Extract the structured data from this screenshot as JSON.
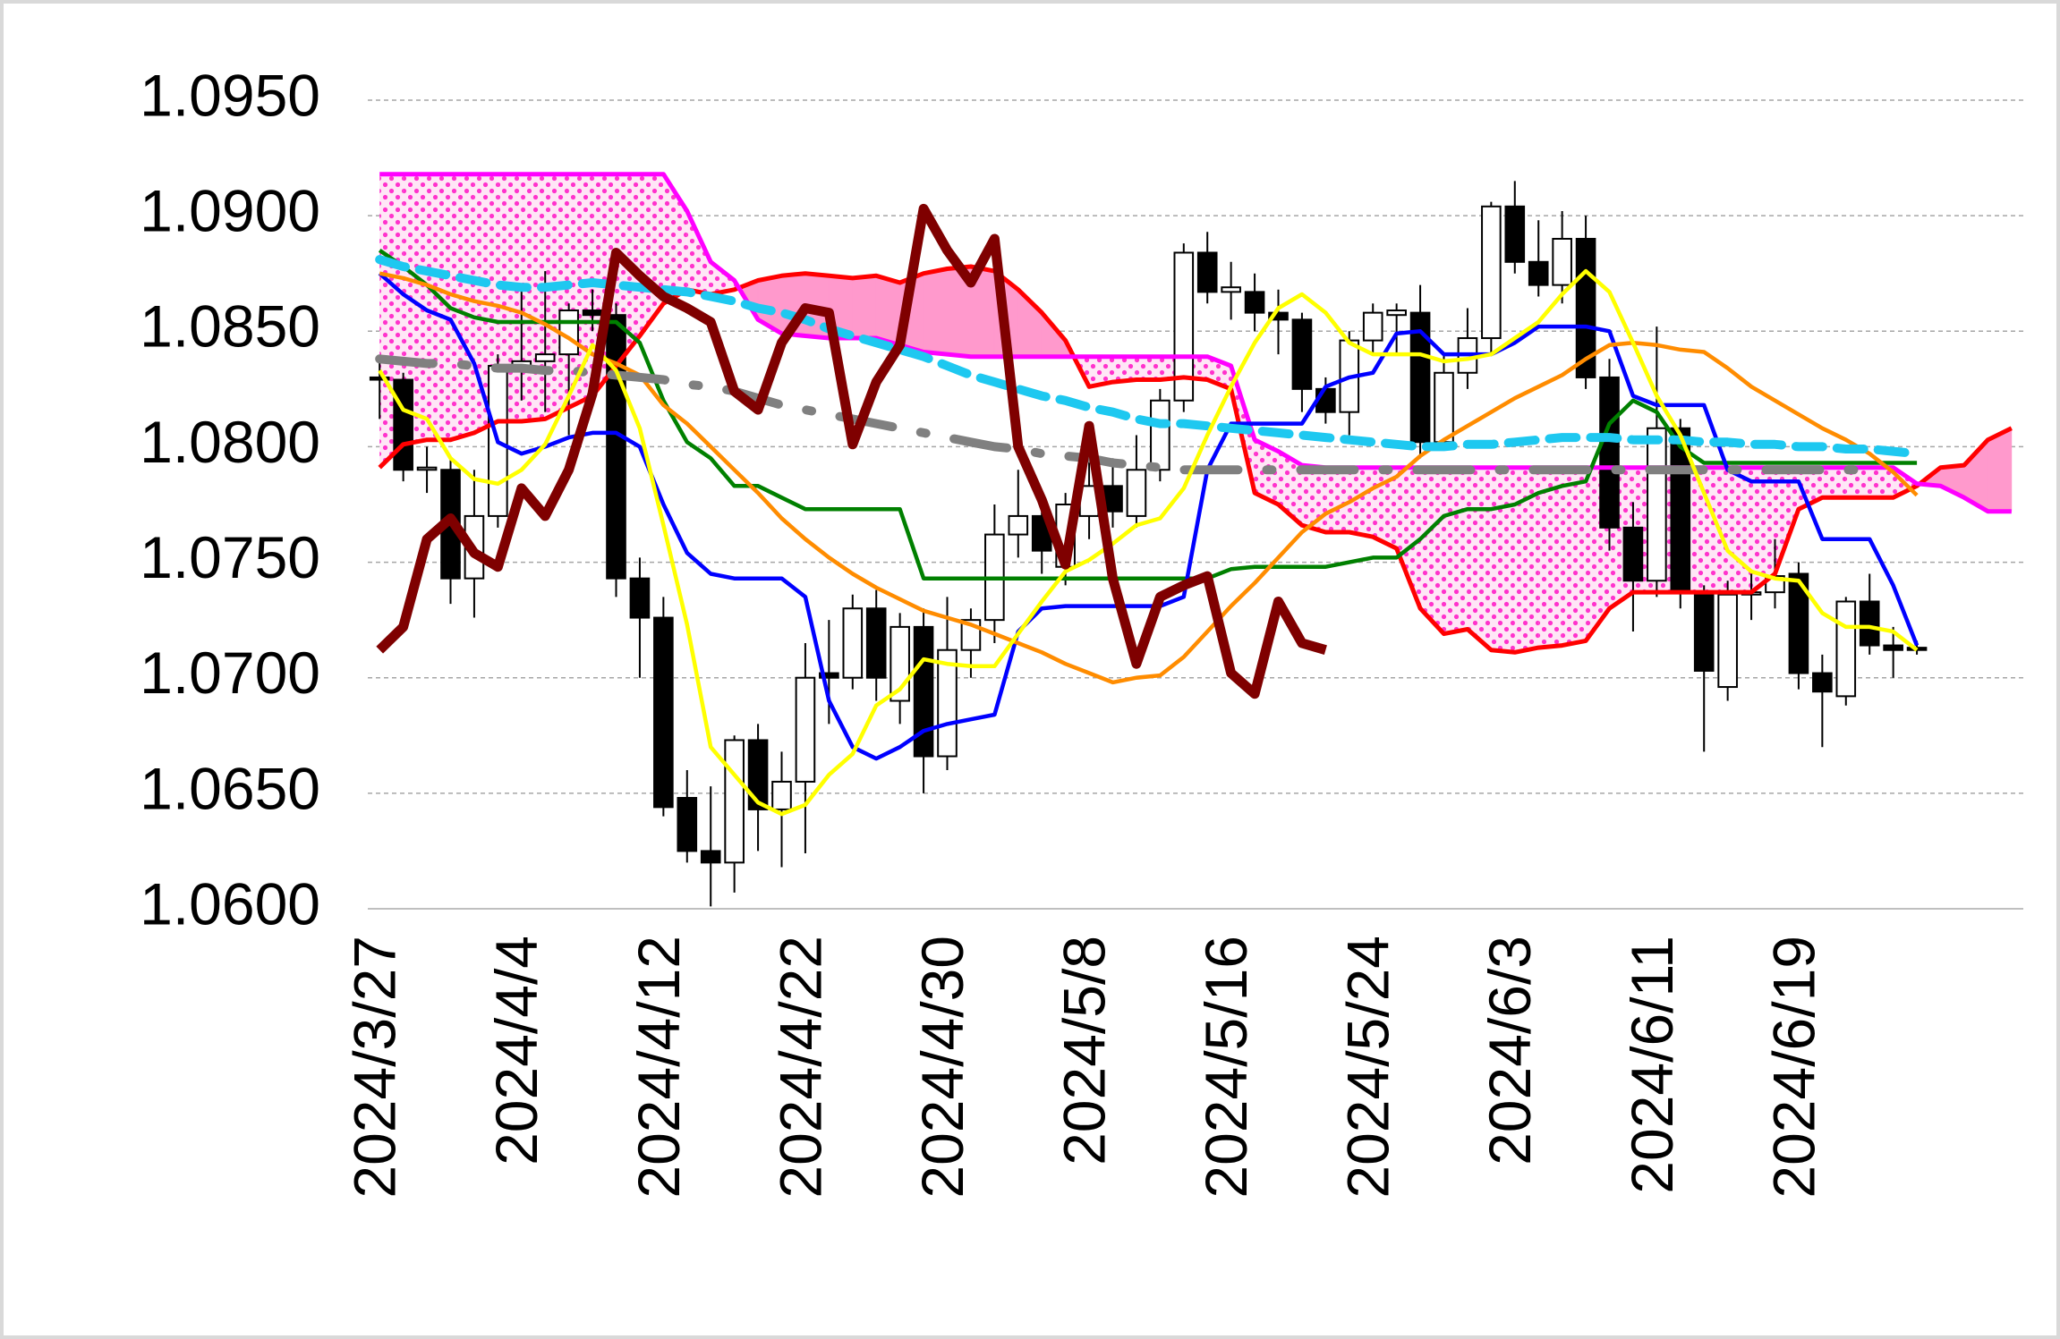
{
  "chart_data": {
    "type": "candlestick",
    "categories": [
      "2024/3/27",
      null,
      null,
      null,
      null,
      null,
      "2024/4/4",
      null,
      null,
      null,
      null,
      null,
      "2024/4/12",
      null,
      null,
      null,
      null,
      null,
      "2024/4/22",
      null,
      null,
      null,
      null,
      null,
      "2024/4/30",
      null,
      null,
      null,
      null,
      null,
      "2024/5/8",
      null,
      null,
      null,
      null,
      null,
      "2024/5/16",
      null,
      null,
      null,
      null,
      null,
      "2024/5/24",
      null,
      null,
      null,
      null,
      null,
      "2024/6/3",
      null,
      null,
      null,
      null,
      null,
      "2024/6/11",
      null,
      null,
      null,
      null,
      null,
      "2024/6/19",
      null,
      null,
      null,
      null,
      null,
      null,
      null,
      null,
      null
    ],
    "ylim": [
      1.06,
      1.095
    ],
    "yticks": [
      {
        "value": 1.06,
        "label": "1.0600"
      },
      {
        "value": 1.065,
        "label": "1.0650"
      },
      {
        "value": 1.07,
        "label": "1.0700"
      },
      {
        "value": 1.075,
        "label": "1.0750"
      },
      {
        "value": 1.08,
        "label": "1.0800"
      },
      {
        "value": 1.085,
        "label": "1.0850"
      },
      {
        "value": 1.09,
        "label": "1.0900"
      },
      {
        "value": 1.095,
        "label": "1.0950"
      }
    ],
    "grid": true,
    "cloud_colors": {
      "bearish": "#ff33cc",
      "bullish": "#ff99cc"
    },
    "candles": {
      "up_color": "#ffffff",
      "down_color": "#000000",
      "open": [
        1.083,
        1.0829,
        1.079,
        1.079,
        1.0743,
        1.077,
        1.0835,
        1.0837,
        1.084,
        1.0859,
        1.0857,
        1.0743,
        1.0726,
        1.0648,
        1.0625,
        1.062,
        1.0673,
        1.0643,
        1.0655,
        1.0702,
        1.07,
        1.073,
        1.069,
        1.0722,
        1.0666,
        1.0712,
        1.0725,
        1.0762,
        1.077,
        1.0748,
        1.077,
        1.0783,
        1.077,
        1.079,
        1.082,
        1.0884,
        1.0867,
        1.0867,
        1.0858,
        1.0855,
        1.0825,
        1.0815,
        1.0846,
        1.0857,
        1.0858,
        1.0802,
        1.0832,
        1.0847,
        1.0904,
        1.088,
        1.087,
        1.089,
        1.083,
        1.0765,
        1.0742,
        1.0808,
        1.0737,
        1.0696,
        1.0736,
        1.0737,
        1.0745,
        1.0702,
        1.0692,
        1.0733,
        1.0714,
        1.0713,
        null,
        null,
        null,
        null
      ],
      "high": [
        1.0838,
        1.0832,
        1.08,
        1.0795,
        1.079,
        1.084,
        1.0868,
        1.0876,
        1.0862,
        1.0868,
        1.0862,
        1.0752,
        1.0735,
        1.066,
        1.0653,
        1.0675,
        1.068,
        1.0668,
        1.0715,
        1.0725,
        1.0736,
        1.0738,
        1.0728,
        1.073,
        1.0735,
        1.073,
        1.0775,
        1.079,
        1.0778,
        1.078,
        1.08,
        1.0795,
        1.0805,
        1.0825,
        1.0888,
        1.0893,
        1.088,
        1.0875,
        1.0868,
        1.0858,
        1.083,
        1.085,
        1.0862,
        1.0862,
        1.087,
        1.084,
        1.086,
        1.0906,
        1.0915,
        1.0898,
        1.0902,
        1.09,
        1.0838,
        1.0776,
        1.0852,
        1.0812,
        1.074,
        1.0742,
        1.0745,
        1.076,
        1.075,
        1.071,
        1.0735,
        1.0745,
        1.0722,
        1.0716,
        null,
        null,
        null,
        null
      ],
      "low": [
        1.0812,
        1.0785,
        1.078,
        1.0732,
        1.0726,
        1.0765,
        1.082,
        1.0815,
        1.0805,
        1.085,
        1.0735,
        1.07,
        1.064,
        1.062,
        1.0601,
        1.0607,
        1.0625,
        1.0618,
        1.0624,
        1.068,
        1.0695,
        1.069,
        1.068,
        1.065,
        1.066,
        1.07,
        1.0715,
        1.0752,
        1.0745,
        1.074,
        1.076,
        1.0765,
        1.0765,
        1.0785,
        1.0815,
        1.0862,
        1.0855,
        1.085,
        1.084,
        1.0815,
        1.081,
        1.0805,
        1.084,
        1.084,
        1.0795,
        1.08,
        1.0825,
        1.084,
        1.0875,
        1.0865,
        1.0862,
        1.0825,
        1.0755,
        1.072,
        1.0735,
        1.073,
        1.0668,
        1.069,
        1.0725,
        1.073,
        1.0695,
        1.067,
        1.0688,
        1.071,
        1.07,
        1.071,
        null,
        null,
        null,
        null
      ],
      "close": [
        1.0829,
        1.079,
        1.0791,
        1.0743,
        1.077,
        1.0835,
        1.0837,
        1.084,
        1.0859,
        1.0857,
        1.0743,
        1.0726,
        1.0644,
        1.0625,
        1.062,
        1.0673,
        1.0643,
        1.0655,
        1.07,
        1.07,
        1.073,
        1.07,
        1.0722,
        1.0666,
        1.0712,
        1.0725,
        1.0762,
        1.077,
        1.0755,
        1.0775,
        1.0783,
        1.0772,
        1.079,
        1.082,
        1.0884,
        1.0867,
        1.0869,
        1.0858,
        1.0855,
        1.0825,
        1.0815,
        1.0846,
        1.0858,
        1.0859,
        1.0802,
        1.0832,
        1.0847,
        1.0904,
        1.088,
        1.087,
        1.089,
        1.083,
        1.0765,
        1.0742,
        1.0808,
        1.0737,
        1.0703,
        1.0736,
        1.0737,
        1.0744,
        1.0702,
        1.0694,
        1.0733,
        1.0714,
        1.0712,
        1.0712,
        null,
        null,
        null,
        null
      ]
    },
    "series": [
      {
        "color": "#ff0000",
        "values": [
          1.0791,
          1.0801,
          1.0803,
          1.0803,
          1.0806,
          1.0811,
          1.0811,
          1.0812,
          1.0817,
          1.0822,
          1.0835,
          1.0848,
          1.0862,
          1.0868,
          1.0866,
          1.0868,
          1.0872,
          1.0874,
          1.0875,
          1.0874,
          1.0873,
          1.0874,
          1.0871,
          1.0875,
          1.0877,
          1.0878,
          1.0876,
          1.0868,
          1.0858,
          1.0846,
          1.0826,
          1.0828,
          1.0829,
          1.0829,
          1.083,
          1.0829,
          1.0825,
          1.078,
          1.0775,
          1.0766,
          1.0763,
          1.0763,
          1.0761,
          1.0756,
          1.073,
          1.0719,
          1.0721,
          1.0712,
          1.0711,
          1.0713,
          1.0714,
          1.0716,
          1.073,
          1.0737,
          1.0737,
          1.0737,
          1.0737,
          1.0737,
          1.0737,
          1.0745,
          1.0773,
          1.0778,
          1.0778,
          1.0778,
          1.0778,
          1.0783,
          1.0791,
          1.0792,
          1.0803,
          1.0808
        ]
      },
      {
        "color": "#ff00ff",
        "values": [
          1.0918,
          1.0918,
          1.0918,
          1.0918,
          1.0918,
          1.0918,
          1.0918,
          1.0918,
          1.0918,
          1.0918,
          1.0918,
          1.0918,
          1.0918,
          1.0902,
          1.088,
          1.0872,
          1.0855,
          1.0849,
          1.0848,
          1.0847,
          1.0847,
          1.0847,
          1.0844,
          1.0841,
          1.084,
          1.0839,
          1.0839,
          1.0839,
          1.0839,
          1.0839,
          1.0839,
          1.0839,
          1.0839,
          1.0839,
          1.0839,
          1.0839,
          1.0835,
          1.0803,
          1.0798,
          1.0792,
          1.0791,
          1.0791,
          1.0791,
          1.0791,
          1.0791,
          1.0791,
          1.0791,
          1.0791,
          1.0791,
          1.0791,
          1.0791,
          1.0791,
          1.0791,
          1.0791,
          1.0791,
          1.0791,
          1.0791,
          1.0791,
          1.0791,
          1.0791,
          1.0791,
          1.0791,
          1.0791,
          1.0791,
          1.0791,
          1.0784,
          1.0783,
          1.0778,
          1.0772,
          1.0772
        ]
      },
      {
        "color": "#008000",
        "values": [
          1.0885,
          1.0878,
          1.087,
          1.086,
          1.0856,
          1.0854,
          1.0854,
          1.0854,
          1.0854,
          1.0854,
          1.0854,
          1.0845,
          1.082,
          1.0802,
          1.0795,
          1.0783,
          1.0783,
          1.0778,
          1.0773,
          1.0773,
          1.0773,
          1.0773,
          1.0773,
          1.0743,
          1.0743,
          1.0743,
          1.0743,
          1.0743,
          1.0743,
          1.0743,
          1.0743,
          1.0743,
          1.0743,
          1.0743,
          1.0743,
          1.0743,
          1.0747,
          1.0748,
          1.0748,
          1.0748,
          1.0748,
          1.075,
          1.0752,
          1.0752,
          1.076,
          1.077,
          1.0773,
          1.0773,
          1.0775,
          1.078,
          1.0783,
          1.0785,
          1.081,
          1.082,
          1.0815,
          1.08,
          1.0793,
          1.0793,
          1.0793,
          1.0793,
          1.0793,
          1.0793,
          1.0793,
          1.0793,
          1.0793,
          1.0793,
          null,
          null,
          null,
          null
        ]
      },
      {
        "color": "#0000ff",
        "values": [
          1.0875,
          1.0866,
          1.0859,
          1.0855,
          1.0836,
          1.0802,
          1.0797,
          1.08,
          1.0804,
          1.0806,
          1.0806,
          1.08,
          1.0775,
          1.0754,
          1.0745,
          1.0743,
          1.0743,
          1.0743,
          1.0735,
          1.069,
          1.067,
          1.0665,
          1.067,
          1.0677,
          1.068,
          1.0682,
          1.0684,
          1.072,
          1.073,
          1.0731,
          1.0731,
          1.0731,
          1.0731,
          1.0731,
          1.0735,
          1.079,
          1.081,
          1.081,
          1.081,
          1.081,
          1.0826,
          1.083,
          1.0832,
          1.0849,
          1.085,
          1.084,
          1.084,
          1.084,
          1.0845,
          1.0852,
          1.0852,
          1.0852,
          1.085,
          1.0822,
          1.0818,
          1.0818,
          1.0818,
          1.079,
          1.0785,
          1.0785,
          1.0785,
          1.076,
          1.076,
          1.076,
          1.074,
          1.0714,
          null,
          null,
          null,
          null
        ]
      },
      {
        "color": "#ff8c00",
        "values": [
          1.0875,
          1.0873,
          1.087,
          1.0866,
          1.0863,
          1.0861,
          1.0858,
          1.0853,
          1.0847,
          1.084,
          1.0836,
          1.0831,
          1.0818,
          1.081,
          1.08,
          1.079,
          1.078,
          1.0769,
          1.076,
          1.0752,
          1.0745,
          1.0739,
          1.0734,
          1.0729,
          1.0726,
          1.0723,
          1.0719,
          1.0715,
          1.0711,
          1.0706,
          1.0702,
          1.0698,
          1.07,
          1.0701,
          1.0709,
          1.072,
          1.0731,
          1.0741,
          1.0752,
          1.0763,
          1.0771,
          1.0776,
          1.0782,
          1.0787,
          1.0796,
          1.0803,
          1.0809,
          1.0815,
          1.0821,
          1.0826,
          1.0831,
          1.0838,
          1.0844,
          1.0845,
          1.0844,
          1.0842,
          1.0841,
          1.0834,
          1.0826,
          1.082,
          1.0814,
          1.0808,
          1.0803,
          1.0797,
          1.0789,
          1.0779,
          null,
          null,
          null,
          null
        ]
      },
      {
        "color": "#808080",
        "dash": "dashdot",
        "values": [
          1.0838,
          1.0837,
          1.0836,
          1.0836,
          1.0835,
          1.0834,
          1.0834,
          1.0833,
          1.0833,
          1.0832,
          1.0831,
          1.083,
          1.0829,
          1.0827,
          1.0826,
          1.0824,
          1.0821,
          1.0818,
          1.0816,
          1.0814,
          1.0812,
          1.081,
          1.0808,
          1.0806,
          1.0804,
          1.0802,
          1.08,
          1.0799,
          1.0797,
          1.0796,
          1.0795,
          1.0793,
          1.0792,
          1.0791,
          1.079,
          1.079,
          1.079,
          1.079,
          1.079,
          1.079,
          1.079,
          1.079,
          1.079,
          1.079,
          1.079,
          1.079,
          1.079,
          1.079,
          1.079,
          1.079,
          1.079,
          1.079,
          1.079,
          1.079,
          1.079,
          1.079,
          1.079,
          1.079,
          1.079,
          1.079,
          1.079,
          1.079,
          1.079,
          1.079,
          null,
          null,
          null,
          null,
          null,
          null
        ]
      },
      {
        "color": "#1ec8f0",
        "dash": "dash",
        "values": [
          1.0881,
          1.0878,
          1.0876,
          1.0874,
          1.0872,
          1.087,
          1.0869,
          1.0869,
          1.087,
          1.0871,
          1.087,
          1.0869,
          1.0868,
          1.0867,
          1.0865,
          1.0863,
          1.086,
          1.0858,
          1.0855,
          1.0851,
          1.0848,
          1.0845,
          1.0842,
          1.0839,
          1.0835,
          1.0831,
          1.0828,
          1.0825,
          1.0822,
          1.082,
          1.0817,
          1.0815,
          1.0812,
          1.081,
          1.081,
          1.0809,
          1.0808,
          1.0807,
          1.0806,
          1.0805,
          1.0804,
          1.0803,
          1.0802,
          1.0801,
          1.08,
          1.08,
          1.0801,
          1.0801,
          1.0802,
          1.0803,
          1.0804,
          1.0804,
          1.0804,
          1.0803,
          1.0803,
          1.0803,
          1.0802,
          1.0802,
          1.0801,
          1.0801,
          1.08,
          1.08,
          1.0799,
          1.0799,
          1.0798,
          1.0797,
          null,
          null,
          null,
          null
        ]
      },
      {
        "color": "#ffff00",
        "values": [
          1.0833,
          1.0816,
          1.0812,
          1.0795,
          1.0786,
          1.0784,
          1.079,
          1.0801,
          1.0822,
          1.0844,
          1.0833,
          1.0808,
          1.0766,
          1.0723,
          1.067,
          1.0658,
          1.0646,
          1.0641,
          1.0645,
          1.0658,
          1.0667,
          1.0688,
          1.0695,
          1.0708,
          1.0706,
          1.0705,
          1.0705,
          1.0719,
          1.0733,
          1.0746,
          1.0751,
          1.0758,
          1.0766,
          1.0769,
          1.0782,
          1.0805,
          1.0826,
          1.0845,
          1.086,
          1.0866,
          1.0858,
          1.0845,
          1.084,
          1.084,
          1.084,
          1.0837,
          1.0838,
          1.084,
          1.0847,
          1.0854,
          1.0866,
          1.0876,
          1.0867,
          1.0845,
          1.0822,
          1.0805,
          1.078,
          1.0755,
          1.0746,
          1.0743,
          1.0742,
          1.0728,
          1.0722,
          1.0722,
          1.072,
          1.0712,
          null,
          null,
          null,
          null
        ]
      },
      {
        "color": "#7f0000",
        "values": [
          1.0712,
          1.0722,
          1.076,
          1.0769,
          1.0754,
          1.0748,
          1.0782,
          1.077,
          1.079,
          1.0823,
          1.0884,
          1.0874,
          1.0865,
          1.086,
          1.0854,
          1.0824,
          1.0816,
          1.0845,
          1.086,
          1.0858,
          1.0801,
          1.0828,
          1.0844,
          1.0903,
          1.0885,
          1.0871,
          1.089,
          1.08,
          1.0777,
          1.0749,
          1.0809,
          1.0743,
          1.0706,
          1.0735,
          1.074,
          1.0744,
          1.0702,
          1.0693,
          1.0733,
          1.0715,
          1.0712,
          null,
          null,
          null,
          null,
          null,
          null,
          null,
          null,
          null,
          null,
          null,
          null,
          null,
          null,
          null,
          null,
          null,
          null,
          null,
          null,
          null,
          null,
          null,
          null,
          null,
          null,
          null,
          null,
          null
        ]
      }
    ]
  }
}
